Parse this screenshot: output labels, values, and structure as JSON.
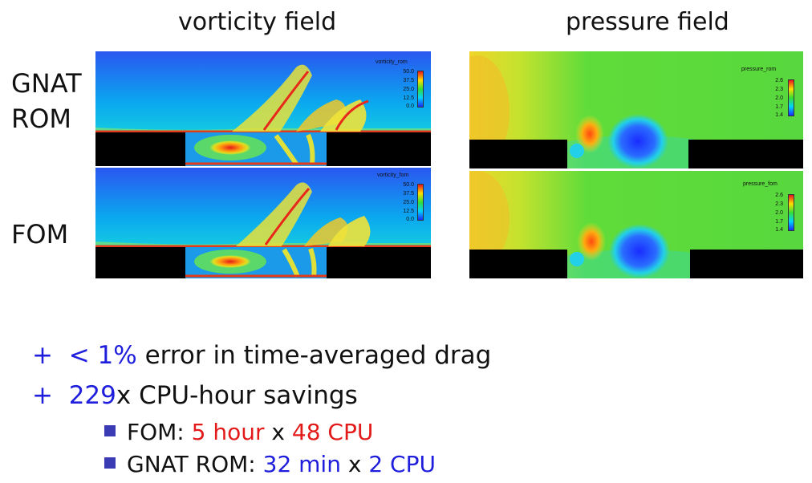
{
  "columns": {
    "left": "vorticity field",
    "right": "pressure field"
  },
  "rows": {
    "top_line1": "GNAT",
    "top_line2": "ROM",
    "bottom": "FOM"
  },
  "legends": {
    "vort_rom": {
      "title": "vorticity_rom",
      "ticks": [
        "50.0",
        "37.5",
        "25.0",
        "12.5",
        "0.0"
      ]
    },
    "vort_fom": {
      "title": "vorticity_fom",
      "ticks": [
        "50.0",
        "37.5",
        "25.0",
        "12.5",
        "0.0"
      ]
    },
    "pres_rom": {
      "title": "pressure_rom",
      "ticks": [
        "2.6",
        "2.3",
        "2.0",
        "1.7",
        "1.4"
      ]
    },
    "pres_fom": {
      "title": "pressure_fom",
      "ticks": [
        "2.6",
        "2.3",
        "2.0",
        "1.7",
        "1.4"
      ]
    }
  },
  "bullets": {
    "b1": {
      "plus": "+",
      "value": "< 1%",
      "rest": " error in time-averaged drag"
    },
    "b2": {
      "plus": "+",
      "value": "229",
      "rest": "x CPU-hour savings"
    },
    "s1": {
      "label": "FOM: ",
      "a": "5 hour",
      "x": " x ",
      "b": "48 CPU"
    },
    "s2": {
      "label": "GNAT ROM: ",
      "a": "32 min",
      "x": " x ",
      "b": "2 CPU"
    }
  },
  "colors": {
    "blue": "#1e1edc",
    "red": "#e31a1a",
    "bullet_square": "#3b3bb5"
  }
}
